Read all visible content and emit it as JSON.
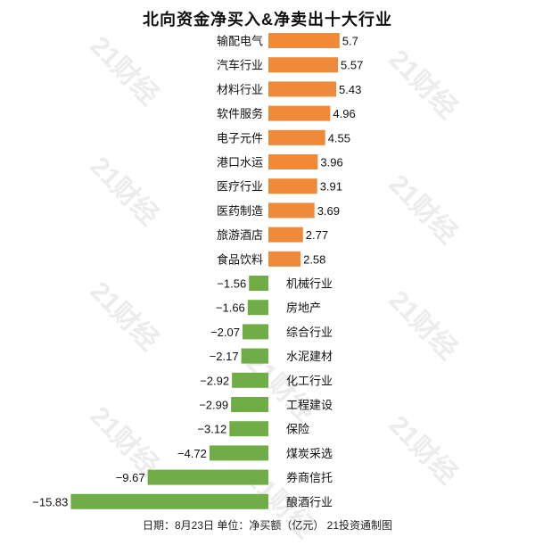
{
  "title": "北向资金净买入&净卖出十大行业",
  "footer": "日期：8月23日 单位：净买额（亿元） 21投资通制图",
  "watermark": "21财经",
  "colors": {
    "positive": "#f08a3b",
    "negative": "#70ad47",
    "text": "#111111"
  },
  "chart_data": {
    "type": "bar",
    "orientation": "horizontal",
    "title": "北向资金净买入&净卖出十大行业",
    "unit": "净买额（亿元）",
    "categories": [
      "输配电气",
      "汽车行业",
      "材料行业",
      "软件服务",
      "电子元件",
      "港口水运",
      "医疗行业",
      "医药制造",
      "旅游酒店",
      "食品饮料",
      "机械行业",
      "房地产",
      "综合行业",
      "水泥建材",
      "化工行业",
      "工程建设",
      "保险",
      "煤炭采选",
      "券商信托",
      "酿酒行业"
    ],
    "values": [
      5.7,
      5.57,
      5.43,
      4.96,
      4.55,
      3.96,
      3.91,
      3.69,
      2.77,
      2.58,
      -1.56,
      -1.66,
      -2.07,
      -2.17,
      -2.92,
      -2.99,
      -3.12,
      -4.72,
      -9.67,
      -15.83
    ],
    "value_labels": [
      "5.7",
      "5.57",
      "5.43",
      "4.96",
      "4.55",
      "3.96",
      "3.91",
      "3.69",
      "2.77",
      "2.58",
      "−1.56",
      "−1.66",
      "−2.07",
      "−2.17",
      "−2.92",
      "−2.99",
      "−3.12",
      "−4.72",
      "−9.67",
      "−15.83"
    ],
    "grid": false,
    "legend": "none"
  }
}
